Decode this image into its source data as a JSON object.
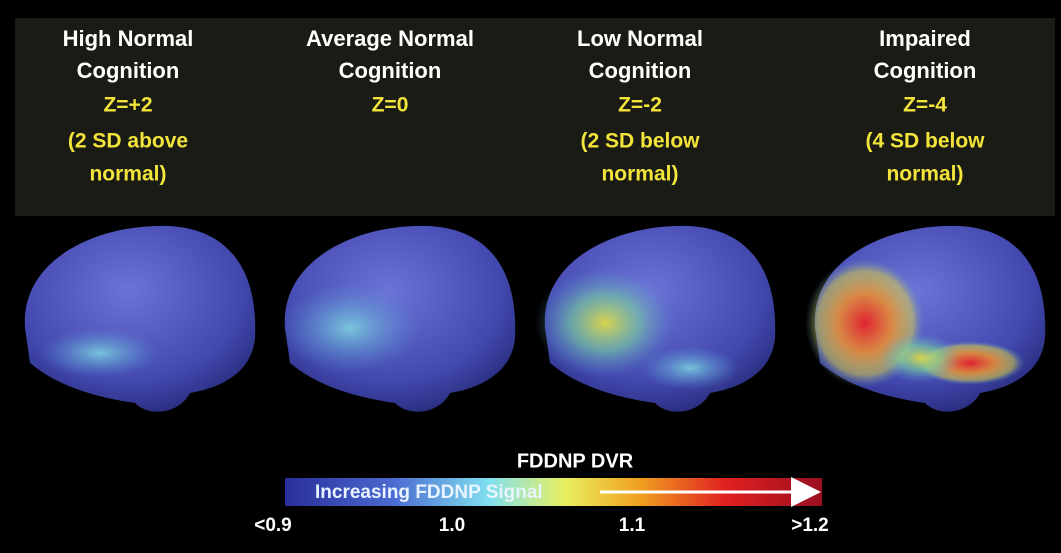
{
  "panels": [
    {
      "title_lines": [
        "High Normal",
        "Cognition"
      ],
      "z": "Z=+2",
      "note_lines": [
        "(2 SD above",
        "normal)"
      ]
    },
    {
      "title_lines": [
        "Average Normal",
        "Cognition"
      ],
      "z": "Z=0",
      "note_lines": []
    },
    {
      "title_lines": [
        "Low Normal",
        "Cognition"
      ],
      "z": "Z=-2",
      "note_lines": [
        "(2 SD below",
        "normal)"
      ]
    },
    {
      "title_lines": [
        "Impaired",
        "Cognition"
      ],
      "z": "Z=-4",
      "note_lines": [
        "(4 SD below",
        "normal)"
      ]
    }
  ],
  "colorbar": {
    "title": "FDDNP DVR",
    "label": "Increasing FDDNP Signal",
    "ticks": [
      "<0.9",
      "1.0",
      "1.1",
      ">1.2"
    ]
  }
}
